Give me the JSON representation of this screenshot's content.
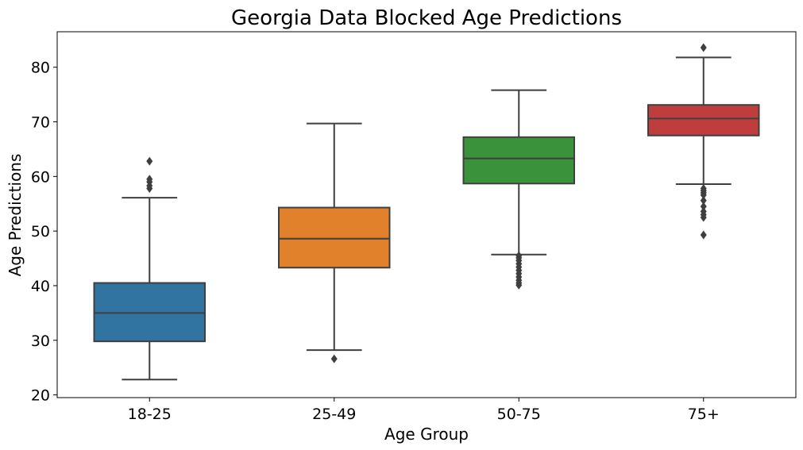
{
  "chart_data": {
    "type": "box",
    "title": "Georgia Data Blocked Age Predictions",
    "xlabel": "Age Group",
    "ylabel": "Age Predictions",
    "ylim": [
      19.5,
      86.5
    ],
    "yticks": [
      20,
      30,
      40,
      50,
      60,
      70,
      80
    ],
    "grid": false,
    "legend": "none",
    "categories": [
      "18-25",
      "25-49",
      "50-75",
      "75+"
    ],
    "series": [
      {
        "category": "18-25",
        "color": "#3274a1",
        "whisker_low": 22.8,
        "q1": 29.8,
        "median": 35.0,
        "q3": 40.5,
        "whisker_high": 56.1,
        "outliers": [
          57.8,
          58.3,
          59.0,
          59.5,
          62.8
        ]
      },
      {
        "category": "25-49",
        "color": "#e1812c",
        "whisker_low": 28.2,
        "q1": 43.3,
        "median": 48.6,
        "q3": 54.3,
        "whisker_high": 69.7,
        "outliers": [
          26.6
        ]
      },
      {
        "category": "50-75",
        "color": "#3a923a",
        "whisker_low": 45.7,
        "q1": 58.7,
        "median": 63.3,
        "q3": 67.2,
        "whisker_high": 75.8,
        "outliers": [
          40.1,
          40.5,
          41.0,
          41.6,
          42.2,
          42.8,
          43.4,
          44.0,
          44.6,
          45.1,
          45.5
        ]
      },
      {
        "category": "75+",
        "color": "#c03d3e",
        "whisker_low": 58.6,
        "q1": 67.5,
        "median": 70.6,
        "q3": 73.1,
        "whisker_high": 81.8,
        "outliers": [
          49.3,
          52.5,
          53.0,
          53.6,
          54.5,
          55.6,
          56.6,
          57.0,
          57.4,
          57.8,
          83.6
        ]
      }
    ]
  }
}
